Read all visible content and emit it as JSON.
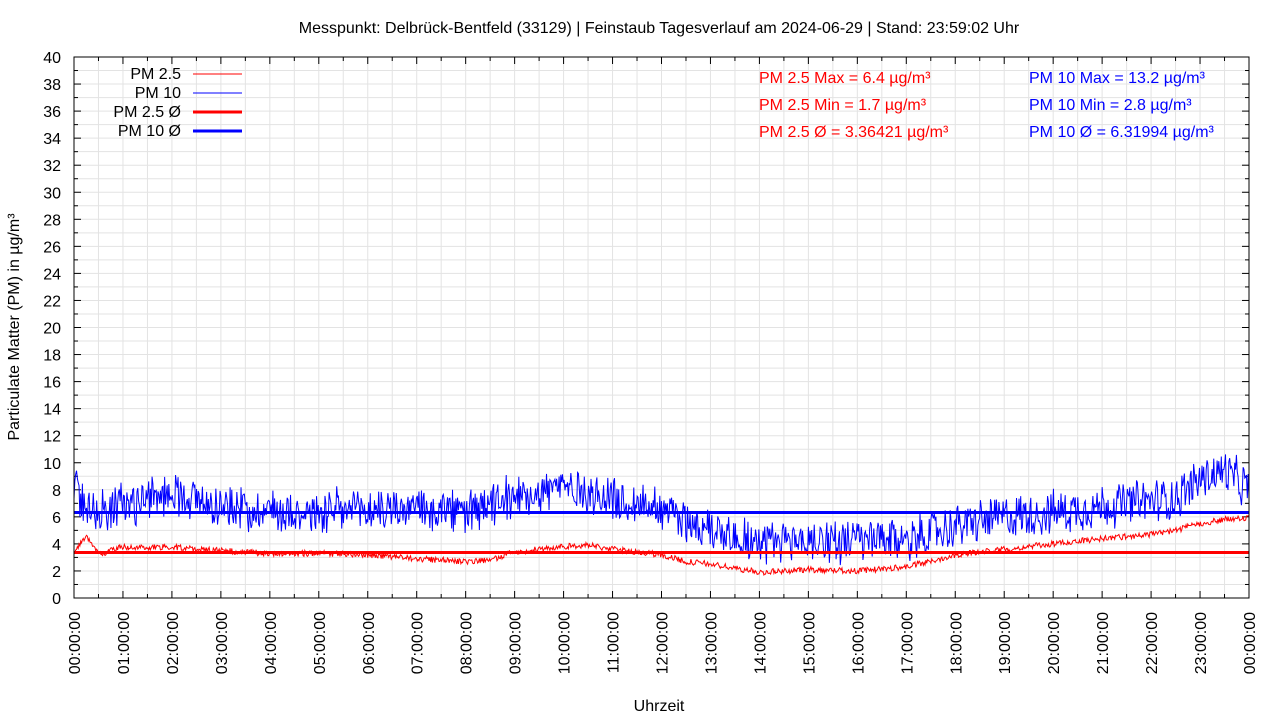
{
  "chart_data": {
    "type": "line",
    "title": "Messpunkt: Delbrück-Bentfeld (33129) | Feinstaub Tagesverlauf am 2024-06-29 | Stand: 23:59:02 Uhr",
    "xlabel": "Uhrzeit",
    "ylabel": "Particulate Matter (PM) in µg/m³",
    "ylim": [
      0,
      40
    ],
    "y_ticks": [
      0,
      2,
      4,
      6,
      8,
      10,
      12,
      14,
      16,
      18,
      20,
      22,
      24,
      26,
      28,
      30,
      32,
      34,
      36,
      38,
      40
    ],
    "x_range_hours": [
      0,
      24
    ],
    "x_tick_labels": [
      "00:00:00",
      "01:00:00",
      "02:00:00",
      "03:00:00",
      "04:00:00",
      "05:00:00",
      "06:00:00",
      "07:00:00",
      "08:00:00",
      "09:00:00",
      "10:00:00",
      "11:00:00",
      "12:00:00",
      "13:00:00",
      "14:00:00",
      "15:00:00",
      "16:00:00",
      "17:00:00",
      "18:00:00",
      "19:00:00",
      "20:00:00",
      "21:00:00",
      "22:00:00",
      "23:00:00",
      "00:00:00"
    ],
    "grid": true,
    "legend_position": "top-left",
    "legend": [
      {
        "label": "PM 2.5",
        "style": "thin"
      },
      {
        "label": "PM 10",
        "style": "thin"
      },
      {
        "label": "PM 2.5 Ø",
        "style": "thick"
      },
      {
        "label": "PM 10 Ø",
        "style": "thick"
      }
    ],
    "series": [
      {
        "name": "PM 2.5",
        "color": "#ff0000",
        "x_hours": [
          0,
          0.25,
          0.5,
          1,
          1.5,
          2,
          2.5,
          3,
          4,
          5,
          6,
          7,
          8,
          8.5,
          9,
          10,
          10.5,
          11,
          12,
          12.5,
          13,
          13.5,
          14,
          15,
          16,
          17,
          17.5,
          18,
          19,
          20,
          21,
          22,
          22.5,
          23,
          23.5,
          24
        ],
        "values": [
          3.4,
          4.5,
          3.2,
          3.8,
          3.7,
          3.8,
          3.6,
          3.5,
          3.3,
          3.3,
          3.2,
          2.9,
          2.7,
          2.8,
          3.4,
          3.8,
          3.9,
          3.6,
          3.2,
          2.7,
          2.5,
          2.2,
          1.9,
          2.1,
          2.0,
          2.3,
          2.7,
          3.2,
          3.6,
          4.0,
          4.4,
          4.7,
          5.0,
          5.5,
          5.8,
          5.9
        ]
      },
      {
        "name": "PM 10",
        "color": "#0000ff",
        "x_hours": [
          0,
          0.25,
          0.5,
          1,
          1.5,
          2,
          2.5,
          3,
          4,
          5,
          6,
          7,
          8,
          8.5,
          9,
          10,
          10.5,
          11,
          12,
          12.5,
          13,
          13.5,
          14,
          15,
          16,
          17,
          17.5,
          18,
          19,
          20,
          21,
          22,
          22.5,
          23,
          23.5,
          24
        ],
        "values": [
          8.2,
          7.0,
          6.3,
          7.0,
          7.2,
          7.8,
          7.3,
          6.7,
          6.5,
          6.3,
          6.5,
          6.6,
          6.3,
          6.7,
          7.5,
          8.3,
          7.8,
          7.2,
          6.8,
          5.6,
          5.2,
          4.7,
          4.1,
          4.3,
          4.2,
          4.3,
          4.8,
          5.3,
          6.0,
          6.3,
          6.8,
          7.2,
          7.4,
          8.8,
          9.4,
          8.0
        ]
      },
      {
        "name": "PM 2.5 Ø",
        "color": "#ff0000",
        "constant": 3.36421
      },
      {
        "name": "PM 10 Ø",
        "color": "#0000ff",
        "constant": 6.31994
      }
    ],
    "annotations": [
      {
        "text": "PM 2.5 Max = 6.4 µg/m³",
        "color": "#ff0000"
      },
      {
        "text": "PM 2.5 Min = 1.7 µg/m³",
        "color": "#ff0000"
      },
      {
        "text": "PM 2.5 Ø = 3.36421 µg/m³",
        "color": "#ff0000"
      },
      {
        "text": "PM 10 Max = 13.2 µg/m³",
        "color": "#0000ff"
      },
      {
        "text": "PM 10 Min = 2.8 µg/m³",
        "color": "#0000ff"
      },
      {
        "text": "PM 10 Ø = 6.31994 µg/m³",
        "color": "#0000ff"
      }
    ]
  }
}
